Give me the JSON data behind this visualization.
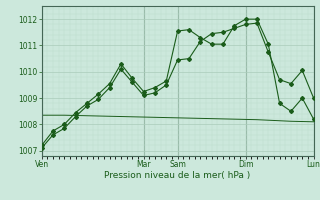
{
  "xlabel": "Pression niveau de la mer( hPa )",
  "background_color": "#cce8dc",
  "grid_major_color": "#aaccba",
  "grid_minor_color": "#bbddcc",
  "line_color": "#1a5c1a",
  "ylim": [
    1006.8,
    1012.5
  ],
  "yticks": [
    1007,
    1008,
    1009,
    1010,
    1011,
    1012
  ],
  "day_labels": [
    "Ven",
    "",
    "Mar",
    "Sam",
    "",
    "Dim",
    "",
    "Lun"
  ],
  "day_tick_labels": [
    "Ven",
    "Mar",
    "Sam",
    "Dim",
    "Lun"
  ],
  "day_tick_pos": [
    0,
    9,
    12,
    18,
    24
  ],
  "vline_positions": [
    0,
    9,
    12,
    18,
    24
  ],
  "series1_x": [
    0,
    1,
    2,
    3,
    4,
    5,
    6,
    7,
    8,
    9,
    10,
    11,
    12,
    13,
    14,
    15,
    16,
    17,
    18,
    19,
    20,
    21,
    22,
    23,
    24
  ],
  "series1_y": [
    1007.2,
    1007.75,
    1008.0,
    1008.45,
    1008.8,
    1009.15,
    1009.55,
    1010.3,
    1009.75,
    1009.25,
    1009.4,
    1009.65,
    1011.55,
    1011.6,
    1011.3,
    1011.05,
    1011.05,
    1011.75,
    1012.0,
    1012.0,
    1011.05,
    1008.8,
    1008.5,
    1009.0,
    1008.2
  ],
  "series2_x": [
    0,
    1,
    2,
    3,
    4,
    5,
    6,
    7,
    8,
    9,
    10,
    11,
    12,
    13,
    14,
    15,
    16,
    17,
    18,
    19,
    20,
    21,
    22,
    23,
    24
  ],
  "series2_y": [
    1007.1,
    1007.6,
    1007.85,
    1008.3,
    1008.7,
    1008.95,
    1009.4,
    1010.1,
    1009.6,
    1009.1,
    1009.2,
    1009.5,
    1010.45,
    1010.5,
    1011.15,
    1011.45,
    1011.5,
    1011.65,
    1011.8,
    1011.85,
    1010.75,
    1009.7,
    1009.55,
    1010.05,
    1009.0
  ],
  "series3_x": [
    0,
    1,
    2,
    3,
    4,
    5,
    6,
    7,
    8,
    9,
    10,
    11,
    12,
    13,
    14,
    15,
    16,
    17,
    18,
    19,
    20,
    21,
    22,
    23,
    24
  ],
  "series3_y": [
    1008.35,
    1008.35,
    1008.35,
    1008.34,
    1008.33,
    1008.32,
    1008.31,
    1008.3,
    1008.29,
    1008.28,
    1008.27,
    1008.26,
    1008.25,
    1008.24,
    1008.23,
    1008.22,
    1008.21,
    1008.2,
    1008.19,
    1008.18,
    1008.16,
    1008.14,
    1008.12,
    1008.11,
    1008.1
  ]
}
